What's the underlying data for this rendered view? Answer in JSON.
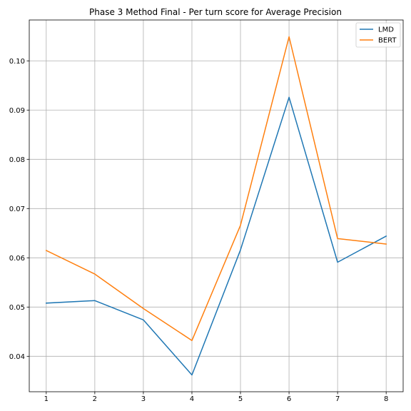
{
  "chart_data": {
    "type": "line",
    "title": "Phase 3 Method Final - Per turn score for Average Precision",
    "xlabel": "",
    "ylabel": "",
    "x": [
      1,
      2,
      3,
      4,
      5,
      6,
      7,
      8
    ],
    "xticks": [
      "1",
      "2",
      "3",
      "4",
      "5",
      "6",
      "7",
      "8"
    ],
    "xlim": [
      0.65,
      8.35
    ],
    "yticks": [
      "0.04",
      "0.05",
      "0.06",
      "0.07",
      "0.08",
      "0.09",
      "0.10"
    ],
    "ylim": [
      0.0328,
      0.1083
    ],
    "grid": true,
    "legend_position": "top-right",
    "series": [
      {
        "name": "LMD",
        "color": "#1f77b4",
        "values": [
          0.0508,
          0.0513,
          0.0474,
          0.0362,
          0.0616,
          0.0926,
          0.0591,
          0.0644
        ]
      },
      {
        "name": "BERT",
        "color": "#ff7f0e",
        "values": [
          0.0615,
          0.0567,
          0.0497,
          0.0432,
          0.0666,
          0.1049,
          0.0639,
          0.0628
        ]
      }
    ]
  }
}
